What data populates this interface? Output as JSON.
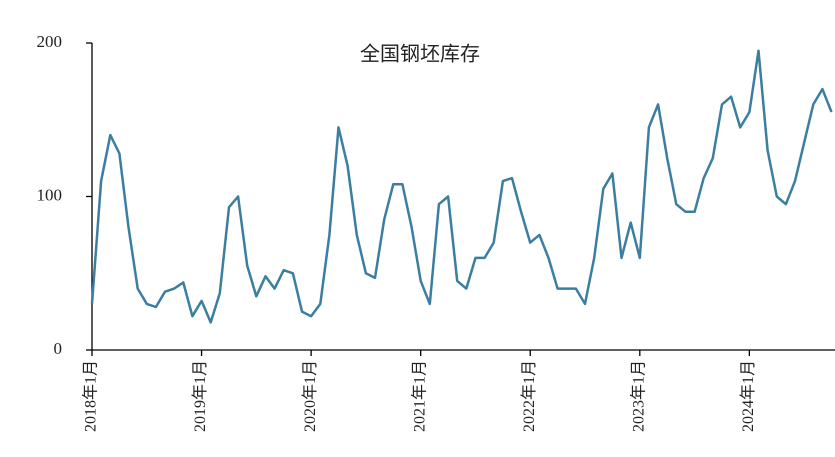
{
  "chart_data": {
    "type": "line",
    "title": "全国钢坯库存",
    "categories": [
      "2018年1月",
      null,
      null,
      null,
      null,
      null,
      null,
      null,
      null,
      null,
      null,
      null,
      "2019年1月",
      null,
      null,
      null,
      null,
      null,
      null,
      null,
      null,
      null,
      null,
      null,
      "2020年1月",
      null,
      null,
      null,
      null,
      null,
      null,
      null,
      null,
      null,
      null,
      null,
      "2021年1月",
      null,
      null,
      null,
      null,
      null,
      null,
      null,
      null,
      null,
      null,
      null,
      "2022年1月",
      null,
      null,
      null,
      null,
      null,
      null,
      null,
      null,
      null,
      null,
      null,
      "2023年1月",
      null,
      null,
      null,
      null,
      null,
      null,
      null,
      null,
      null,
      null,
      null,
      "2024年1月",
      null,
      null,
      null,
      null,
      null,
      null,
      null,
      null,
      null
    ],
    "series": [
      {
        "name": "全国钢坯库存",
        "color": "#3b7ea1",
        "values": [
          30,
          110,
          140,
          128,
          80,
          40,
          30,
          28,
          38,
          40,
          44,
          22,
          32,
          18,
          37,
          93,
          100,
          55,
          35,
          48,
          40,
          52,
          50,
          25,
          22,
          30,
          75,
          145,
          120,
          75,
          50,
          47,
          85,
          108,
          108,
          80,
          45,
          30,
          95,
          100,
          45,
          40,
          60,
          60,
          70,
          110,
          112,
          90,
          70,
          75,
          60,
          40,
          40,
          40,
          30,
          60,
          105,
          115,
          60,
          83,
          60,
          145,
          160,
          125,
          95,
          90,
          90,
          112,
          125,
          160,
          165,
          145,
          155,
          195,
          130,
          100,
          95,
          110,
          135,
          160,
          170,
          155
        ]
      }
    ],
    "ylim": [
      0,
      200
    ],
    "yticks": [
      0,
      100,
      200
    ]
  }
}
